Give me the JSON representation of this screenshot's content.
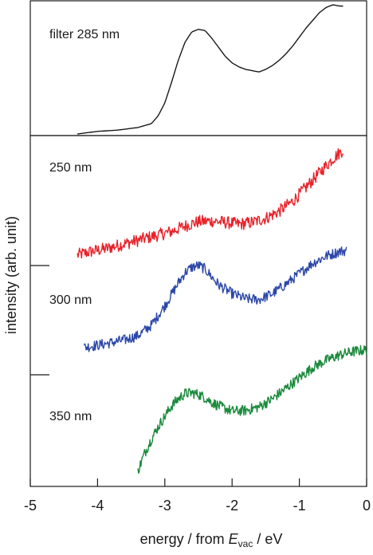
{
  "chart_data": [
    {
      "type": "line",
      "panel": "top",
      "xlim": [
        -5,
        0
      ],
      "grid": false,
      "annotations": [
        "filter 285 nm"
      ],
      "series": [
        {
          "name": "filter 285 nm",
          "color": "#1a1a1a",
          "noise": 0.0,
          "x": [
            -4.3,
            -4.0,
            -3.7,
            -3.4,
            -3.2,
            -3.1,
            -3.0,
            -2.9,
            -2.8,
            -2.7,
            -2.6,
            -2.5,
            -2.4,
            -2.3,
            -2.2,
            -2.1,
            -2.0,
            -1.9,
            -1.8,
            -1.7,
            -1.6,
            -1.5,
            -1.4,
            -1.3,
            -1.2,
            -1.1,
            -1.0,
            -0.9,
            -0.8,
            -0.7,
            -0.6,
            -0.5,
            -0.4,
            -0.35
          ],
          "y": [
            0.0,
            0.02,
            0.03,
            0.05,
            0.08,
            0.14,
            0.24,
            0.4,
            0.57,
            0.71,
            0.79,
            0.81,
            0.8,
            0.74,
            0.67,
            0.6,
            0.55,
            0.52,
            0.5,
            0.49,
            0.48,
            0.5,
            0.53,
            0.57,
            0.62,
            0.68,
            0.75,
            0.82,
            0.88,
            0.94,
            0.98,
            1.0,
            0.99,
            0.99
          ]
        }
      ]
    },
    {
      "type": "line",
      "panel": "bottom",
      "xlabel": "energy / from E_vac / eV",
      "xlabel_main": "energy / from ",
      "xlabel_var": "E",
      "xlabel_sub": "vac",
      "xlabel_unit": " / eV",
      "ylabel": "intensity (arb. unit)",
      "xlim": [
        -5,
        0
      ],
      "ylim": [
        0,
        1
      ],
      "xticks": [
        "-5",
        "-4",
        "-3",
        "-2",
        "-1",
        "0"
      ],
      "grid": false,
      "annotations": [
        "250 nm",
        "300 nm",
        "350 nm"
      ],
      "series": [
        {
          "name": "250 nm",
          "color": "#e8222a",
          "noise": 0.018,
          "x": [
            -4.3,
            -4.1,
            -3.9,
            -3.7,
            -3.5,
            -3.3,
            -3.1,
            -2.9,
            -2.7,
            -2.5,
            -2.3,
            -2.1,
            -1.9,
            -1.7,
            -1.5,
            -1.3,
            -1.1,
            -0.9,
            -0.7,
            -0.5,
            -0.35
          ],
          "y": [
            0.655,
            0.665,
            0.672,
            0.682,
            0.692,
            0.702,
            0.712,
            0.722,
            0.738,
            0.75,
            0.752,
            0.748,
            0.743,
            0.748,
            0.76,
            0.78,
            0.808,
            0.848,
            0.89,
            0.93,
            0.955
          ]
        },
        {
          "name": "300 nm",
          "color": "#2c47a8",
          "noise": 0.015,
          "x": [
            -4.2,
            -4.0,
            -3.8,
            -3.6,
            -3.4,
            -3.2,
            -3.0,
            -2.8,
            -2.7,
            -2.6,
            -2.5,
            -2.4,
            -2.3,
            -2.2,
            -2.0,
            -1.8,
            -1.6,
            -1.4,
            -1.2,
            -1.0,
            -0.8,
            -0.6,
            -0.4,
            -0.3
          ],
          "y": [
            0.392,
            0.398,
            0.405,
            0.413,
            0.425,
            0.455,
            0.51,
            0.575,
            0.605,
            0.62,
            0.625,
            0.615,
            0.592,
            0.57,
            0.545,
            0.53,
            0.528,
            0.545,
            0.572,
            0.602,
            0.632,
            0.652,
            0.665,
            0.668
          ]
        },
        {
          "name": "350 nm",
          "color": "#1b8a3c",
          "noise": 0.015,
          "x": [
            -3.4,
            -3.3,
            -3.2,
            -3.1,
            -3.0,
            -2.9,
            -2.8,
            -2.7,
            -2.6,
            -2.5,
            -2.4,
            -2.3,
            -2.2,
            -2.0,
            -1.8,
            -1.6,
            -1.4,
            -1.2,
            -1.0,
            -0.8,
            -0.6,
            -0.4,
            -0.2,
            0.0
          ],
          "y": [
            0.04,
            0.09,
            0.13,
            0.165,
            0.195,
            0.225,
            0.245,
            0.26,
            0.262,
            0.258,
            0.248,
            0.235,
            0.225,
            0.21,
            0.212,
            0.222,
            0.245,
            0.275,
            0.305,
            0.335,
            0.355,
            0.37,
            0.38,
            0.385
          ]
        }
      ]
    }
  ]
}
